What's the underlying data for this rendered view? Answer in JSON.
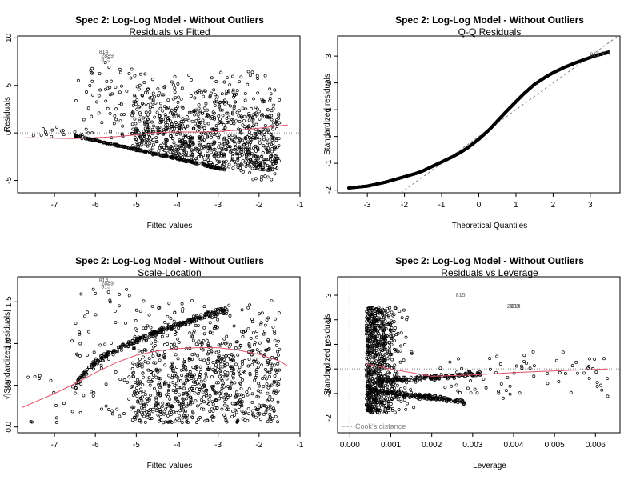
{
  "colors": {
    "points": "#000000",
    "smoother": "#df536b",
    "reference": "#808080",
    "legend": "#808080"
  },
  "chart_data": [
    {
      "id": "residuals-vs-fitted",
      "type": "scatter",
      "title": "Spec 2: Log-Log Model - Without Outliers",
      "subtitle": "Residuals vs Fitted",
      "xlabel": "Fitted values",
      "ylabel": "Residuals",
      "xlim": [
        -7.9,
        -1.0
      ],
      "ylim": [
        -6.3,
        10.2
      ],
      "xticks": [
        "-7",
        "-6",
        "-5",
        "-4",
        "-3",
        "-2",
        "-1"
      ],
      "yticks": [
        "-5",
        "0",
        "5",
        "10"
      ],
      "reference_line": {
        "type": "horizontal",
        "y": 0,
        "style": "dotted"
      },
      "smoother": {
        "x": [
          -7.7,
          -6.5,
          -5.5,
          -5,
          -4.5,
          -4,
          -3.5,
          -3,
          -2.5,
          -2,
          -1.5,
          -1.3
        ],
        "y": [
          -0.5,
          -0.6,
          -0.4,
          -0.2,
          0.05,
          0.1,
          0.1,
          0.15,
          0.3,
          0.5,
          0.75,
          0.85
        ]
      },
      "labeled_points": [
        {
          "label": "814",
          "x": -5.95,
          "y": 8.5
        },
        {
          "label": "2889",
          "x": -5.9,
          "y": 8.1
        },
        {
          "label": "815",
          "x": -5.9,
          "y": 7.7
        }
      ],
      "point_cloud": {
        "n": 1500,
        "baseline_from": [
          -6.5,
          -0.3
        ],
        "baseline_to": [
          -2.8,
          -3.9
        ]
      }
    },
    {
      "id": "q-q-residuals",
      "type": "scatter",
      "title": "Spec 2: Log-Log Model - Without Outliers",
      "subtitle": "Q-Q Residuals",
      "xlabel": "Theoretical Quantiles",
      "ylabel": "Standardized residuals",
      "xlim": [
        -3.8,
        3.8
      ],
      "ylim": [
        -2.1,
        3.75
      ],
      "xticks": [
        "-3",
        "-2",
        "-1",
        "0",
        "1",
        "2",
        "3"
      ],
      "yticks": [
        "-2",
        "-1",
        "0",
        "1",
        "2",
        "3"
      ],
      "reference_line": {
        "type": "diagonal",
        "from": [
          -2.1,
          -2.1
        ],
        "to": [
          3.75,
          3.75
        ],
        "style": "dashed"
      },
      "curve_x": [
        -3.5,
        -3.0,
        -2.5,
        -2.0,
        -1.7,
        -1.5,
        -1.2,
        -1.0,
        -0.7,
        -0.5,
        -0.3,
        0.0,
        0.3,
        0.5,
        0.8,
        1.0,
        1.2,
        1.5,
        1.8,
        2.0,
        2.3,
        2.6,
        2.9,
        3.1,
        3.5
      ],
      "curve_y": [
        -1.92,
        -1.85,
        -1.7,
        -1.5,
        -1.38,
        -1.28,
        -1.08,
        -0.95,
        -0.75,
        -0.6,
        -0.42,
        -0.1,
        0.28,
        0.58,
        1.02,
        1.3,
        1.58,
        1.95,
        2.22,
        2.38,
        2.58,
        2.75,
        2.9,
        3.0,
        3.15
      ],
      "labeled_points": [
        {
          "label": "815",
          "x": 2.95,
          "y": 3.05
        },
        {
          "label": "814",
          "x": 3.25,
          "y": 3.1
        }
      ]
    },
    {
      "id": "scale-location",
      "type": "scatter",
      "title": "Spec 2: Log-Log Model - Without Outliers",
      "subtitle": "Scale-Location",
      "xlabel": "Fitted values",
      "ylabel": "√|Standardized residuals|",
      "xlim": [
        -7.9,
        -1.0
      ],
      "ylim": [
        -0.07,
        1.8
      ],
      "xticks": [
        "-7",
        "-6",
        "-5",
        "-4",
        "-3",
        "-2",
        "-1"
      ],
      "yticks": [
        "0.0",
        "0.5",
        "1.0",
        "1.5"
      ],
      "smoother": {
        "x": [
          -7.8,
          -7,
          -6.5,
          -6,
          -5.5,
          -5,
          -4.5,
          -4,
          -3.5,
          -3,
          -2.5,
          -2,
          -1.5,
          -1.3
        ],
        "y": [
          0.23,
          0.4,
          0.52,
          0.65,
          0.77,
          0.86,
          0.91,
          0.94,
          0.95,
          0.95,
          0.92,
          0.87,
          0.79,
          0.73
        ]
      },
      "labeled_points": [
        {
          "label": "814",
          "x": -5.95,
          "y": 1.75
        },
        {
          "label": "2889",
          "x": -5.9,
          "y": 1.72
        },
        {
          "label": "815",
          "x": -5.9,
          "y": 1.68
        }
      ],
      "point_cloud": {
        "n": 1400,
        "band_from": [
          -6.5,
          0.4
        ],
        "band_to": [
          -2.8,
          1.4
        ]
      }
    },
    {
      "id": "residuals-vs-leverage",
      "type": "scatter",
      "title": "Spec 2: Log-Log Model - Without Outliers",
      "subtitle": "Residuals vs Leverage",
      "xlabel": "Leverage",
      "ylabel": "Standardized residuals",
      "xlim": [
        -0.0003,
        0.0066
      ],
      "ylim": [
        -2.6,
        3.75
      ],
      "xticks": [
        "0.000",
        "0.001",
        "0.002",
        "0.003",
        "0.004",
        "0.005",
        "0.006"
      ],
      "yticks": [
        "-2",
        "-1",
        "0",
        "1",
        "2",
        "3"
      ],
      "legend": {
        "text": "Cook's distance",
        "placement": "bottom-left"
      },
      "reference_line": {
        "type": "horizontal",
        "y": 0,
        "style": "dotted"
      },
      "smoother": {
        "x": [
          0.0004,
          0.001,
          0.002,
          0.003,
          0.004,
          0.005,
          0.0063
        ],
        "y": [
          0.2,
          0.0,
          -0.3,
          -0.25,
          -0.15,
          -0.08,
          0.0
        ]
      },
      "labeled_points": [
        {
          "label": "815",
          "x": 0.00255,
          "y": 3.0
        },
        {
          "label": "2889",
          "x": 0.0038,
          "y": 2.55
        },
        {
          "label": "814",
          "x": 0.0039,
          "y": 2.55
        }
      ],
      "point_cloud": {
        "n": 1400,
        "x_range": [
          0.0004,
          0.0063
        ]
      }
    }
  ]
}
